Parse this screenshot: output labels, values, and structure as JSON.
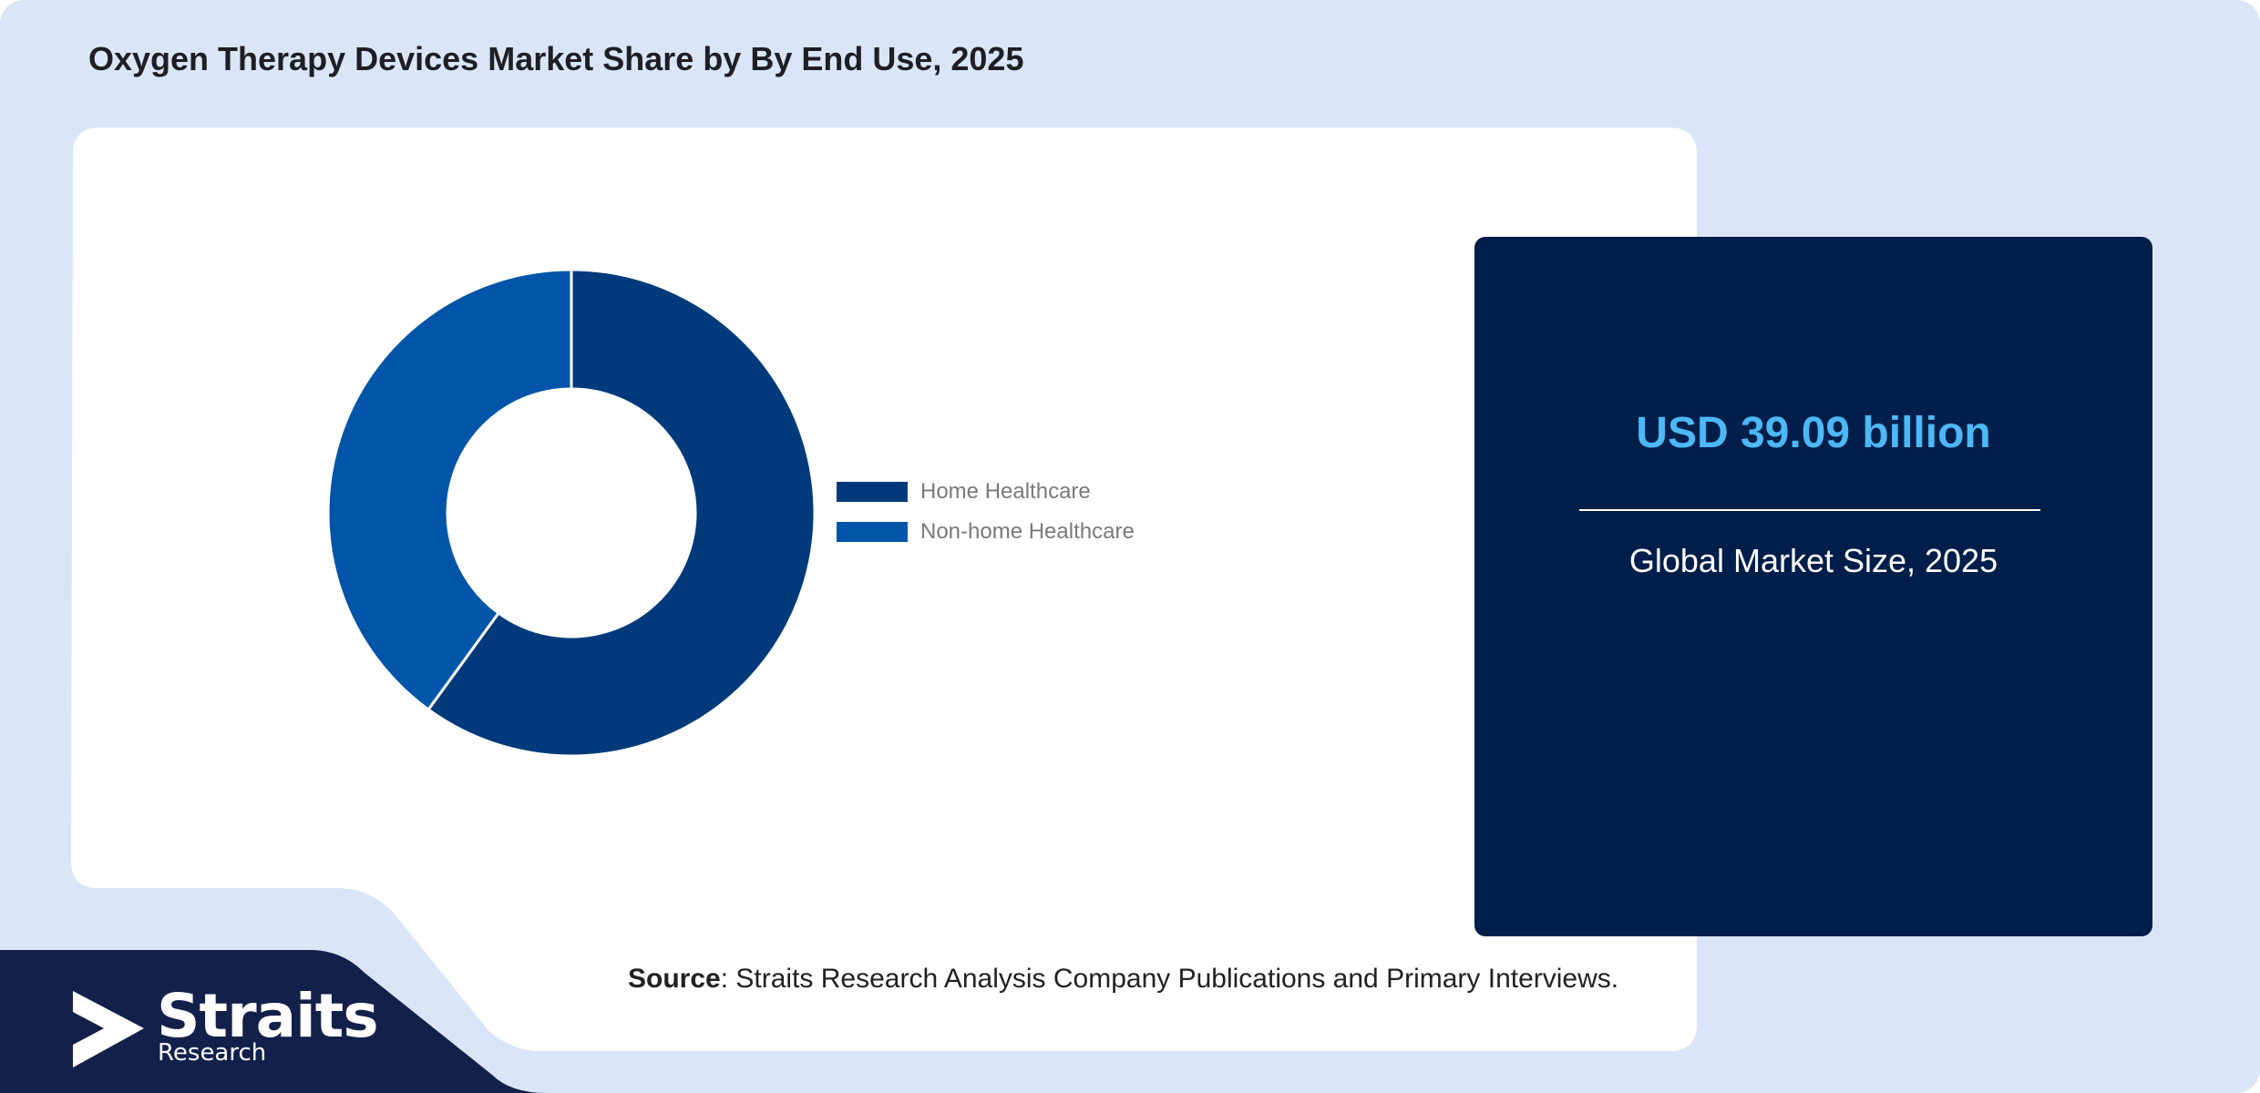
{
  "title": "Oxygen Therapy Devices Market Share by By End Use, 2025",
  "colors": {
    "page_background": "#dae6f8",
    "panel": "#ffffff",
    "card": "#001e4a",
    "accent_value": "#4cb8f5",
    "footer_navy": "#13214a",
    "home_healthcare": "#003a7a",
    "non_home_healthcare": "#0055a8"
  },
  "chart_data": {
    "type": "pie",
    "variant": "donut",
    "title": "",
    "series": [
      {
        "name": "Home Healthcare",
        "value": 60,
        "color": "#003a7a"
      },
      {
        "name": "Non-home Healthcare",
        "value": 40,
        "color": "#0055a8"
      }
    ],
    "unit": "%",
    "legend": "right"
  },
  "stat": {
    "value": "USD 39.09 billion",
    "caption": "Global Market Size, 2025"
  },
  "source": {
    "label": "Source",
    "text": ": Straits Research Analysis Company Publications and Primary Interviews."
  },
  "brand": {
    "name": "Straits",
    "subtitle": "Research",
    "logo_icon": "straits-arrow-icon"
  }
}
